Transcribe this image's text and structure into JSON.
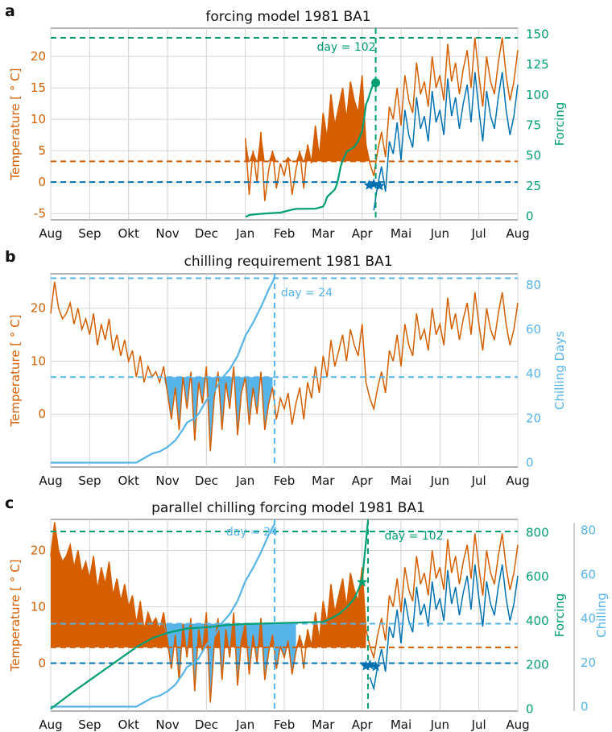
{
  "colors": {
    "temperature": "#d55e00",
    "temperature_fill": "#d55e00",
    "forcing": "#009e73",
    "chilling": "#56b4e9",
    "threshold_blue": "#0072b2",
    "grid": "#d3d3d3"
  },
  "months": [
    "Aug",
    "Sep",
    "Okt",
    "Nov",
    "Dec",
    "Jan",
    "Feb",
    "Mar",
    "Apr",
    "Mai",
    "Jun",
    "Jul",
    "Aug"
  ],
  "chart_data": [
    {
      "panel": "a",
      "type": "line",
      "title": "forcing model 1981 BA1",
      "xlabel": "",
      "ylabel": "Temperature [$^\\circ$ C]",
      "ylabel_display": "Temperature [ ° C]",
      "ylabel_right": "Forcing",
      "ylim": [
        -6,
        24.5
      ],
      "yticks": [
        -5,
        0,
        5,
        10,
        15,
        20
      ],
      "ylim_right": [
        -3,
        155
      ],
      "yticks_right": [
        0,
        25,
        50,
        75,
        100,
        125,
        150
      ],
      "threshold_temperature": 3.3,
      "threshold_base": 0,
      "requirement_forcing": 147,
      "event_day_label": "day = 102",
      "event_month_pos": 8.35,
      "forcing_marker": [
        8.35,
        110
      ],
      "star_markers": [
        [
          8.18,
          -0.5
        ],
        [
          8.3,
          -0.3
        ],
        [
          8.45,
          -0.6
        ]
      ],
      "forcing_curve": [
        [
          5.0,
          -0.1
        ],
        [
          5.05,
          0
        ],
        [
          5.1,
          1
        ],
        [
          5.4,
          2
        ],
        [
          5.9,
          3
        ],
        [
          6.15,
          5
        ],
        [
          6.3,
          6
        ],
        [
          6.8,
          6.2
        ],
        [
          7.0,
          8
        ],
        [
          7.05,
          11
        ],
        [
          7.1,
          16
        ],
        [
          7.2,
          19
        ],
        [
          7.3,
          22
        ],
        [
          7.35,
          26
        ],
        [
          7.4,
          33
        ],
        [
          7.45,
          41
        ],
        [
          7.5,
          46
        ],
        [
          7.55,
          49
        ],
        [
          7.6,
          53
        ],
        [
          7.7,
          55
        ],
        [
          7.8,
          57
        ],
        [
          7.9,
          62
        ],
        [
          8.0,
          70
        ],
        [
          8.05,
          80
        ],
        [
          8.1,
          92
        ],
        [
          8.15,
          96
        ],
        [
          8.2,
          101
        ],
        [
          8.25,
          106
        ],
        [
          8.3,
          110
        ]
      ]
    },
    {
      "panel": "b",
      "type": "line",
      "title": "chilling requirement 1981 BA1",
      "xlabel": "",
      "ylabel": "Temperature [$^\\circ$ C]",
      "ylabel_display": "Temperature [ ° C]",
      "ylabel_right": "Chilling Days",
      "ylim": [
        -10,
        26.5
      ],
      "yticks": [
        0,
        10,
        20
      ],
      "ylim_right": [
        -2,
        85
      ],
      "yticks_right": [
        0,
        20,
        40,
        60,
        80
      ],
      "threshold_temperature": 7,
      "requirement_chilling": 83,
      "event_day_label": "day = 24",
      "event_month_pos": 5.75,
      "chilling_curve": [
        [
          0.0,
          0
        ],
        [
          2.2,
          0
        ],
        [
          2.4,
          2
        ],
        [
          2.6,
          4
        ],
        [
          2.8,
          5
        ],
        [
          3.0,
          7
        ],
        [
          3.2,
          10
        ],
        [
          3.4,
          15
        ],
        [
          3.5,
          18
        ],
        [
          3.7,
          20
        ],
        [
          3.8,
          22
        ],
        [
          4.0,
          28
        ],
        [
          4.2,
          32
        ],
        [
          4.4,
          38
        ],
        [
          4.6,
          42
        ],
        [
          4.8,
          48
        ],
        [
          5.0,
          57
        ],
        [
          5.2,
          63
        ],
        [
          5.4,
          70
        ],
        [
          5.6,
          78
        ],
        [
          5.75,
          83
        ]
      ]
    },
    {
      "panel": "c",
      "type": "line",
      "title": "parallel chilling forcing model 1981 BA1",
      "xlabel": "",
      "ylabel": "Temperature [$^\\circ$ C]",
      "ylabel_display": "Temperature [ ° C]",
      "ylabel_right": "Forcing",
      "ylabel_right2": "Chilling",
      "ylim": [
        -8.5,
        25.5
      ],
      "yticks": [
        0,
        10,
        20
      ],
      "ylim_right": [
        -10,
        860
      ],
      "yticks_right": [
        0,
        200,
        400,
        600,
        800
      ],
      "ylim_right2": [
        -2,
        85
      ],
      "yticks_right2": [
        0,
        20,
        40,
        60,
        80
      ],
      "threshold_temperature": 2.8,
      "threshold_chill": 7,
      "threshold_base": 0,
      "requirement_forcing": 805,
      "chill_day_label": "day = 24",
      "forcing_day_label": "day = 102",
      "chill_month_pos": 5.75,
      "event_month_pos": 8.15,
      "forcing_marker": [
        8.0,
        575
      ],
      "star_markers": [
        [
          8.1,
          -0.5
        ],
        [
          8.2,
          -0.3
        ],
        [
          8.35,
          -0.6
        ]
      ],
      "forcing_curve": [
        [
          0.0,
          0
        ],
        [
          0.3,
          40
        ],
        [
          0.6,
          80
        ],
        [
          1.0,
          130
        ],
        [
          1.4,
          180
        ],
        [
          1.8,
          230
        ],
        [
          2.2,
          280
        ],
        [
          2.6,
          320
        ],
        [
          3.0,
          345
        ],
        [
          3.5,
          365
        ],
        [
          4.0,
          370
        ],
        [
          4.5,
          380
        ],
        [
          5.0,
          385
        ],
        [
          6.0,
          390
        ],
        [
          7.0,
          395
        ],
        [
          7.2,
          410
        ],
        [
          7.4,
          430
        ],
        [
          7.6,
          460
        ],
        [
          7.8,
          500
        ],
        [
          8.0,
          580
        ],
        [
          8.15,
          850
        ]
      ],
      "chilling_curve": [
        [
          0.0,
          0
        ],
        [
          2.2,
          0
        ],
        [
          2.4,
          2
        ],
        [
          2.6,
          4
        ],
        [
          2.8,
          5
        ],
        [
          3.0,
          7
        ],
        [
          3.2,
          10
        ],
        [
          3.4,
          15
        ],
        [
          3.5,
          18
        ],
        [
          3.7,
          20
        ],
        [
          3.8,
          22
        ],
        [
          4.0,
          28
        ],
        [
          4.2,
          32
        ],
        [
          4.4,
          38
        ],
        [
          4.6,
          42
        ],
        [
          4.8,
          48
        ],
        [
          5.0,
          57
        ],
        [
          5.2,
          63
        ],
        [
          5.4,
          70
        ],
        [
          5.6,
          78
        ],
        [
          5.75,
          83
        ]
      ]
    }
  ],
  "temperature_series": {
    "months_pos": [
      0.0,
      0.1,
      0.2,
      0.3,
      0.4,
      0.5,
      0.6,
      0.7,
      0.8,
      0.9,
      1.0,
      1.1,
      1.2,
      1.3,
      1.4,
      1.5,
      1.6,
      1.7,
      1.8,
      1.9,
      2.0,
      2.1,
      2.2,
      2.3,
      2.4,
      2.5,
      2.6,
      2.7,
      2.8,
      2.9,
      3.0,
      3.1,
      3.2,
      3.3,
      3.4,
      3.5,
      3.6,
      3.7,
      3.8,
      3.9,
      4.0,
      4.1,
      4.2,
      4.3,
      4.4,
      4.5,
      4.6,
      4.7,
      4.8,
      4.9,
      5.0,
      5.1,
      5.2,
      5.3,
      5.4,
      5.5,
      5.6,
      5.7,
      5.8,
      5.9,
      6.0,
      6.1,
      6.2,
      6.3,
      6.4,
      6.5,
      6.6,
      6.7,
      6.8,
      6.9,
      7.0,
      7.1,
      7.2,
      7.3,
      7.4,
      7.5,
      7.6,
      7.7,
      7.8,
      7.9,
      8.0,
      8.1,
      8.2,
      8.3,
      8.4,
      8.5,
      8.6,
      8.7,
      8.8,
      8.9,
      9.0,
      9.1,
      9.2,
      9.3,
      9.4,
      9.5,
      9.6,
      9.7,
      9.8,
      9.9,
      10.0,
      10.1,
      10.2,
      10.3,
      10.4,
      10.5,
      10.6,
      10.7,
      10.8,
      10.9,
      11.0,
      11.1,
      11.2,
      11.3,
      11.4,
      11.5,
      11.6,
      11.7,
      11.8,
      11.9,
      12.0
    ],
    "temperature": [
      19,
      25,
      20,
      18,
      19,
      21,
      17,
      20,
      16,
      18,
      15,
      19,
      13,
      17,
      14,
      18,
      12,
      15,
      11,
      14,
      10,
      12,
      7,
      11,
      6,
      9,
      7,
      8,
      6,
      9,
      4,
      -1,
      5,
      -3,
      7,
      1,
      8,
      -5,
      6,
      2,
      9,
      -7,
      3,
      8,
      -3,
      6,
      1,
      9,
      -4,
      4,
      7,
      -2,
      5,
      0,
      8,
      -3,
      2,
      5,
      -1,
      3,
      1,
      4,
      -2,
      2,
      5,
      -1,
      6,
      3,
      9,
      4,
      11,
      7,
      14,
      9,
      12,
      15,
      10,
      16,
      13,
      11,
      17,
      6,
      3,
      1,
      5,
      8,
      4,
      12,
      10,
      15,
      9,
      17,
      13,
      11,
      19,
      14,
      16,
      12,
      20,
      15,
      17,
      13,
      22,
      16,
      19,
      14,
      18,
      21,
      15,
      23,
      17,
      12,
      20,
      16,
      14,
      19,
      23,
      17,
      13,
      16,
      21
    ]
  }
}
